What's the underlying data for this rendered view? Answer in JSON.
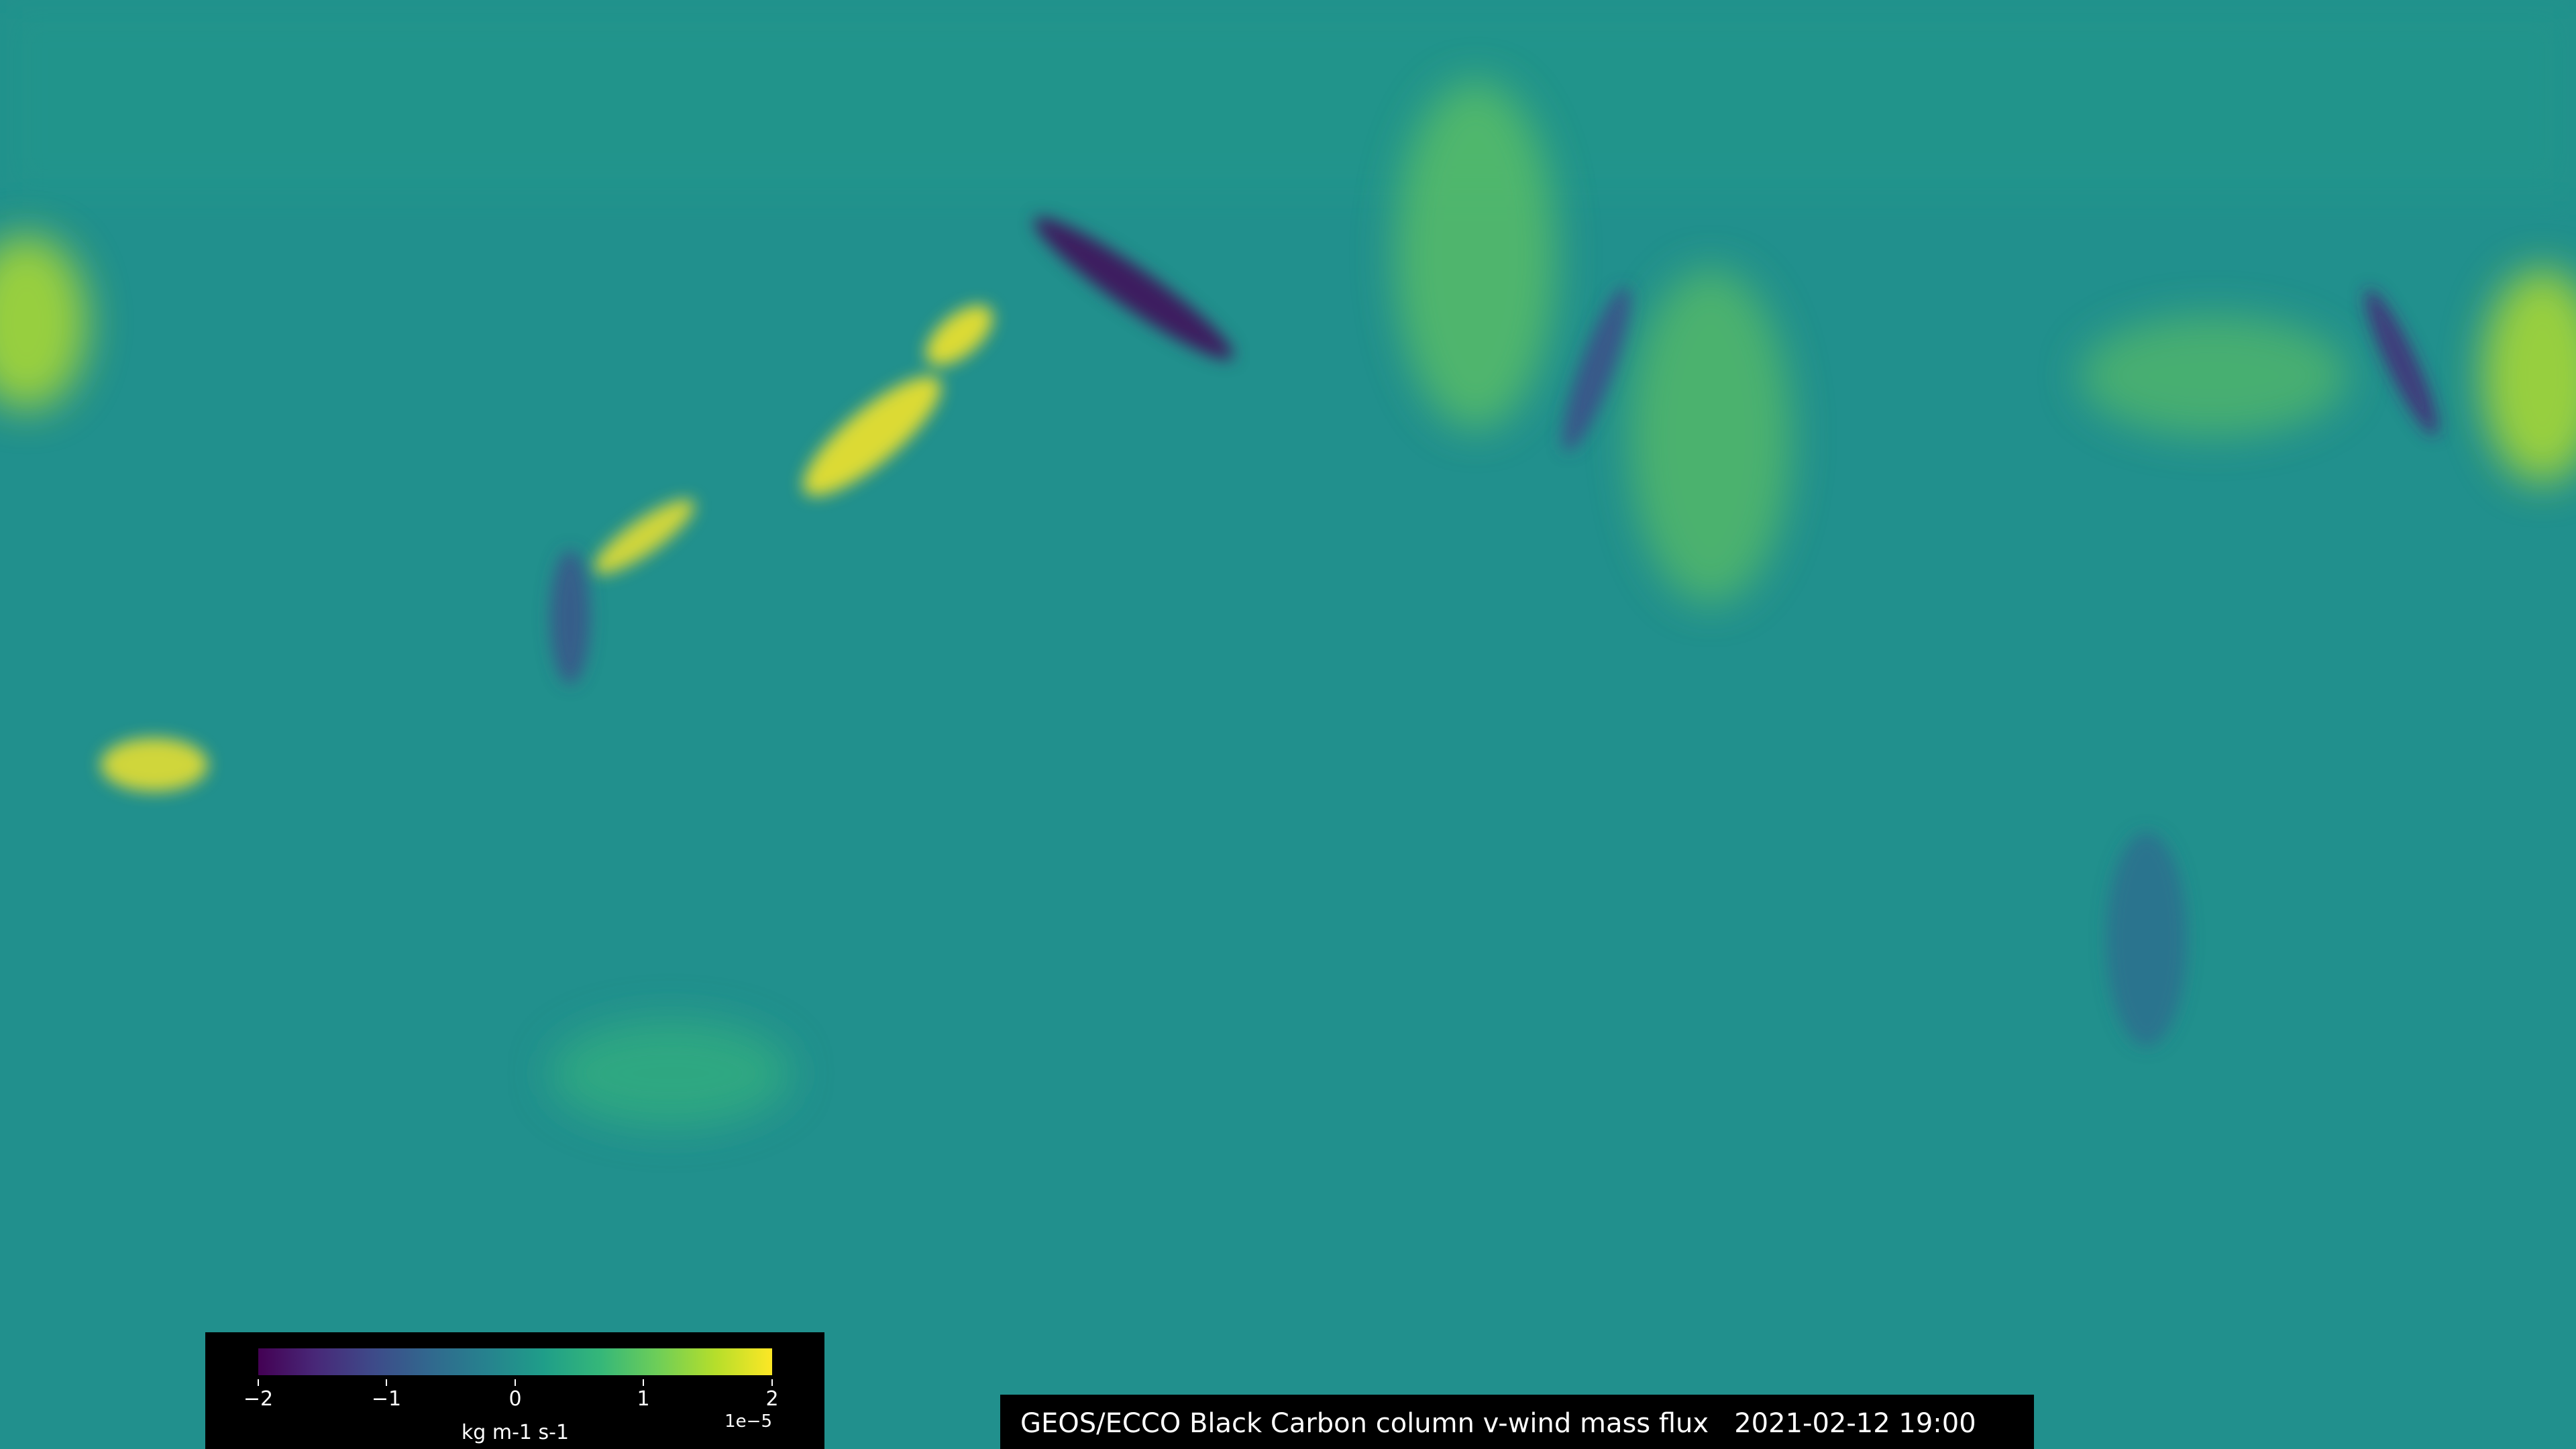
{
  "title": {
    "product": "GEOS/ECCO Black Carbon column v-wind mass flux",
    "timestamp": "2021-02-12 19:00"
  },
  "colorbar": {
    "colormap": "viridis",
    "ticks": [
      "−2",
      "−1",
      "0",
      "1",
      "2"
    ],
    "tick_values": [
      -2,
      -1,
      0,
      1,
      2
    ],
    "range": [
      -2,
      2
    ],
    "exponent": "1e−5",
    "units": "kg m-1 s-1"
  },
  "colors": {
    "background": "#21908d",
    "panel": "#000000"
  }
}
